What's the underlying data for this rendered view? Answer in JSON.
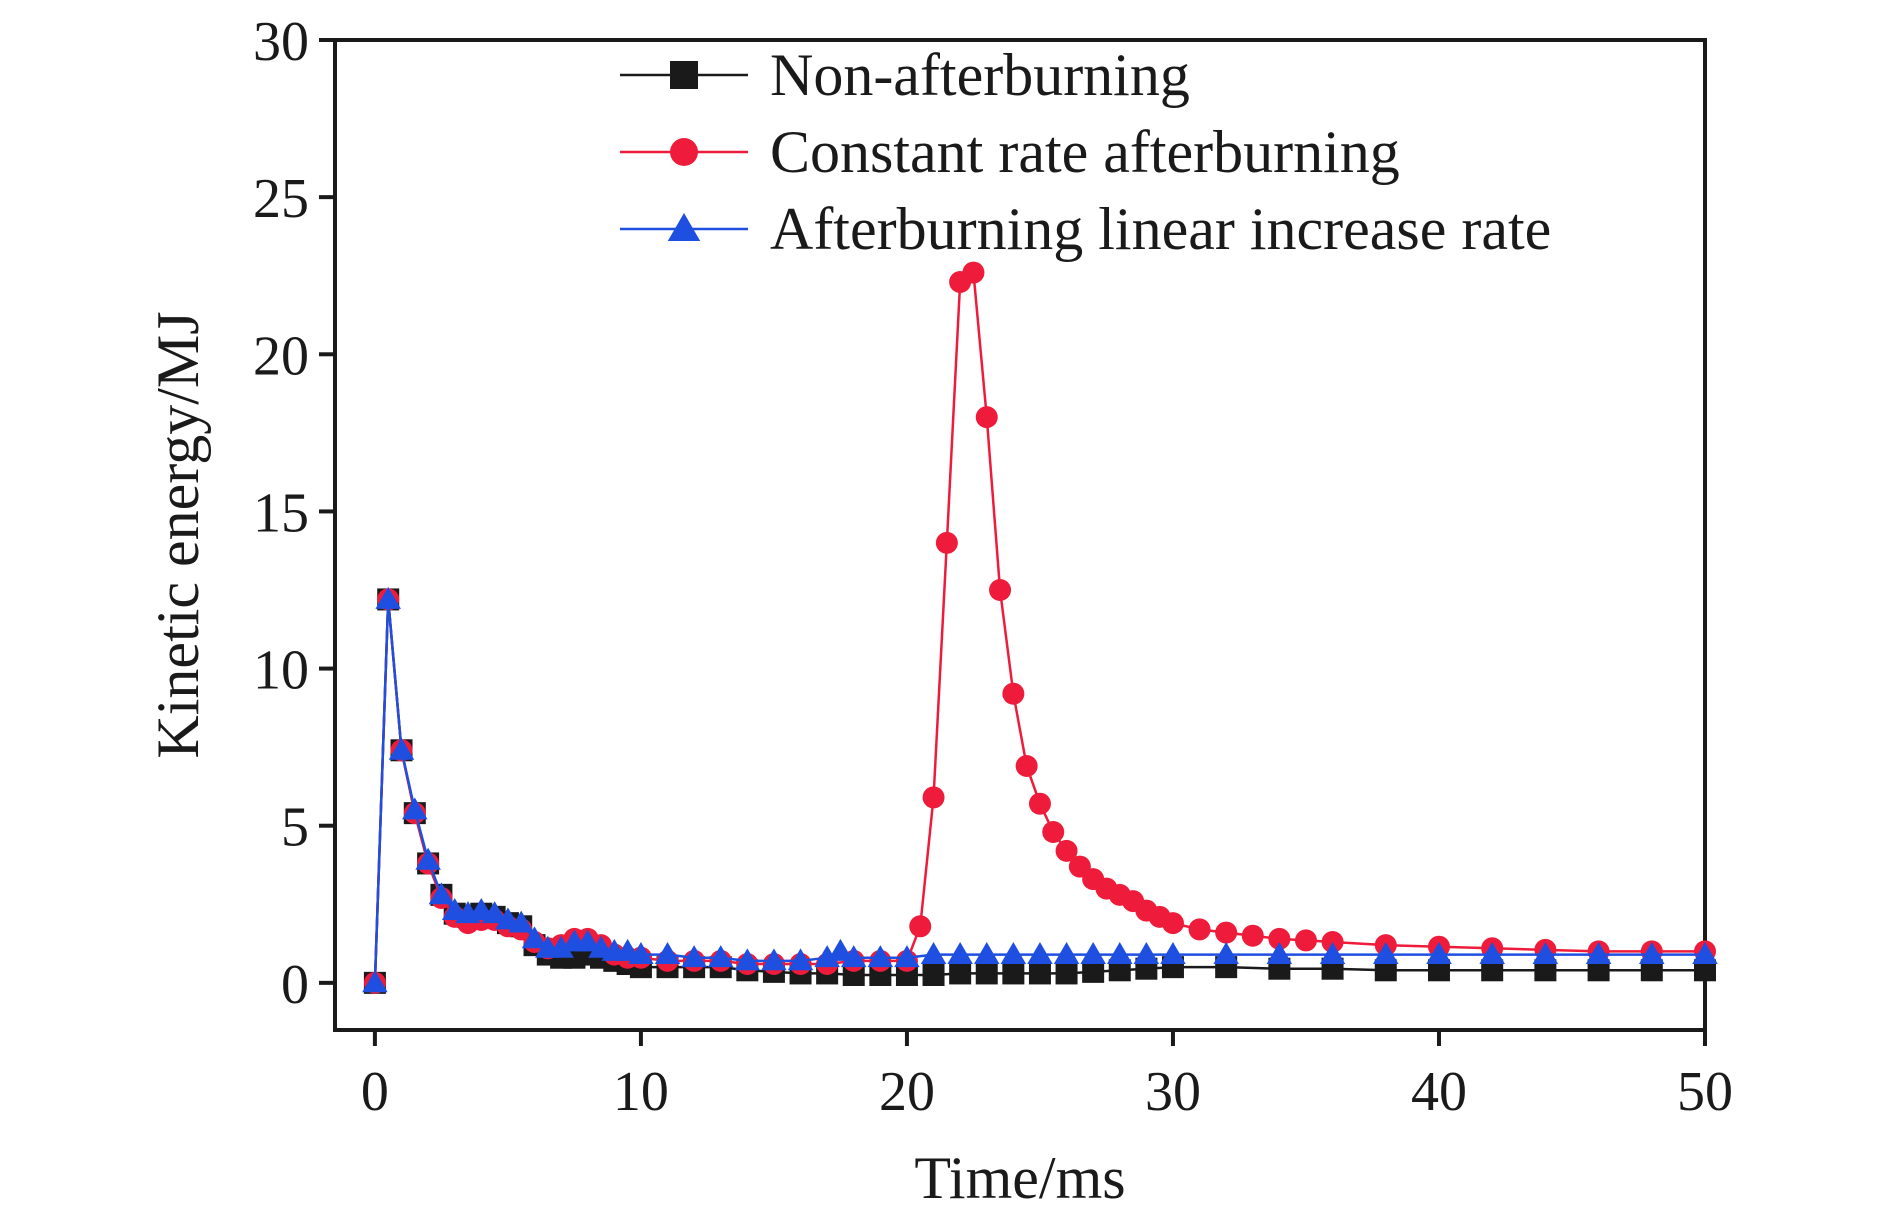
{
  "chart_data": {
    "type": "line",
    "title": "",
    "xlabel": "Time/ms",
    "ylabel": "Kinetic energy/MJ",
    "xlim": [
      -1.5,
      50
    ],
    "ylim": [
      -1.5,
      30
    ],
    "xticks": [
      0,
      10,
      20,
      30,
      40,
      50
    ],
    "yticks": [
      0,
      5,
      10,
      15,
      20,
      25,
      30
    ],
    "grid": false,
    "legend_position": "top-center",
    "series": [
      {
        "name": "Non-afterburning",
        "color": "#1a1a1a",
        "marker": "square",
        "x": [
          0,
          0.5,
          1,
          1.5,
          2,
          2.5,
          3,
          3.5,
          4,
          4.5,
          5,
          5.5,
          6,
          6.5,
          7,
          7.5,
          8,
          8.5,
          9,
          9.5,
          10,
          11,
          12,
          13,
          14,
          15,
          16,
          17,
          18,
          19,
          20,
          21,
          22,
          23,
          24,
          25,
          26,
          27,
          28,
          29,
          30,
          32,
          34,
          36,
          38,
          40,
          42,
          44,
          46,
          48,
          50
        ],
        "y": [
          0,
          12.2,
          7.4,
          5.4,
          3.8,
          2.8,
          2.2,
          2.1,
          2.2,
          2.1,
          1.9,
          1.8,
          1.2,
          0.9,
          0.8,
          0.8,
          0.9,
          0.8,
          0.7,
          0.6,
          0.5,
          0.5,
          0.5,
          0.5,
          0.4,
          0.35,
          0.3,
          0.3,
          0.25,
          0.25,
          0.25,
          0.25,
          0.3,
          0.3,
          0.3,
          0.3,
          0.3,
          0.35,
          0.4,
          0.45,
          0.5,
          0.5,
          0.45,
          0.45,
          0.4,
          0.4,
          0.4,
          0.4,
          0.4,
          0.4,
          0.4
        ]
      },
      {
        "name": "Constant rate afterburning",
        "color": "#ee1c3a",
        "marker": "circle",
        "x": [
          0,
          0.5,
          1,
          1.5,
          2,
          2.5,
          3,
          3.5,
          4,
          4.5,
          5,
          5.5,
          6,
          6.5,
          7,
          7.5,
          8,
          8.5,
          9,
          9.5,
          10,
          11,
          12,
          13,
          14,
          15,
          16,
          17,
          18,
          19,
          20,
          20.5,
          21,
          21.5,
          22,
          22.5,
          23,
          23.5,
          24,
          24.5,
          25,
          25.5,
          26,
          26.5,
          27,
          27.5,
          28,
          28.5,
          29,
          29.5,
          30,
          31,
          32,
          33,
          34,
          35,
          36,
          38,
          40,
          42,
          44,
          46,
          48,
          50
        ],
        "y": [
          0,
          12.2,
          7.4,
          5.4,
          3.8,
          2.7,
          2.1,
          1.9,
          2.0,
          2.0,
          1.8,
          1.7,
          1.3,
          1.1,
          1.2,
          1.4,
          1.4,
          1.2,
          0.9,
          0.8,
          0.8,
          0.7,
          0.7,
          0.7,
          0.6,
          0.6,
          0.6,
          0.6,
          0.7,
          0.7,
          0.7,
          1.8,
          5.9,
          14.0,
          22.3,
          22.6,
          18.0,
          12.5,
          9.2,
          6.9,
          5.7,
          4.8,
          4.2,
          3.7,
          3.3,
          3.0,
          2.8,
          2.6,
          2.3,
          2.1,
          1.9,
          1.7,
          1.6,
          1.5,
          1.4,
          1.35,
          1.3,
          1.2,
          1.15,
          1.1,
          1.05,
          1.0,
          1.0,
          1.0
        ]
      },
      {
        "name": "Afterburning linear increase rate",
        "color": "#1f4fe0",
        "marker": "triangle",
        "x": [
          0,
          0.5,
          1,
          1.5,
          2,
          2.5,
          3,
          3.5,
          4,
          4.5,
          5,
          5.5,
          6,
          6.5,
          7,
          7.5,
          8,
          8.5,
          9,
          9.5,
          10,
          11,
          12,
          13,
          14,
          15,
          16,
          17,
          17.5,
          18,
          19,
          20,
          21,
          22,
          23,
          24,
          25,
          26,
          27,
          28,
          29,
          30,
          32,
          34,
          36,
          38,
          40,
          42,
          44,
          46,
          48,
          50
        ],
        "y": [
          0,
          12.2,
          7.4,
          5.5,
          3.9,
          2.8,
          2.3,
          2.2,
          2.3,
          2.2,
          2.0,
          1.9,
          1.4,
          1.1,
          1.1,
          1.3,
          1.3,
          1.1,
          1.0,
          1.0,
          0.9,
          0.9,
          0.8,
          0.8,
          0.7,
          0.7,
          0.7,
          0.8,
          1.0,
          0.8,
          0.8,
          0.8,
          0.9,
          0.9,
          0.9,
          0.9,
          0.9,
          0.9,
          0.9,
          0.9,
          0.9,
          0.9,
          0.9,
          0.9,
          0.9,
          0.9,
          0.9,
          0.9,
          0.9,
          0.9,
          0.9,
          0.9
        ]
      }
    ]
  }
}
